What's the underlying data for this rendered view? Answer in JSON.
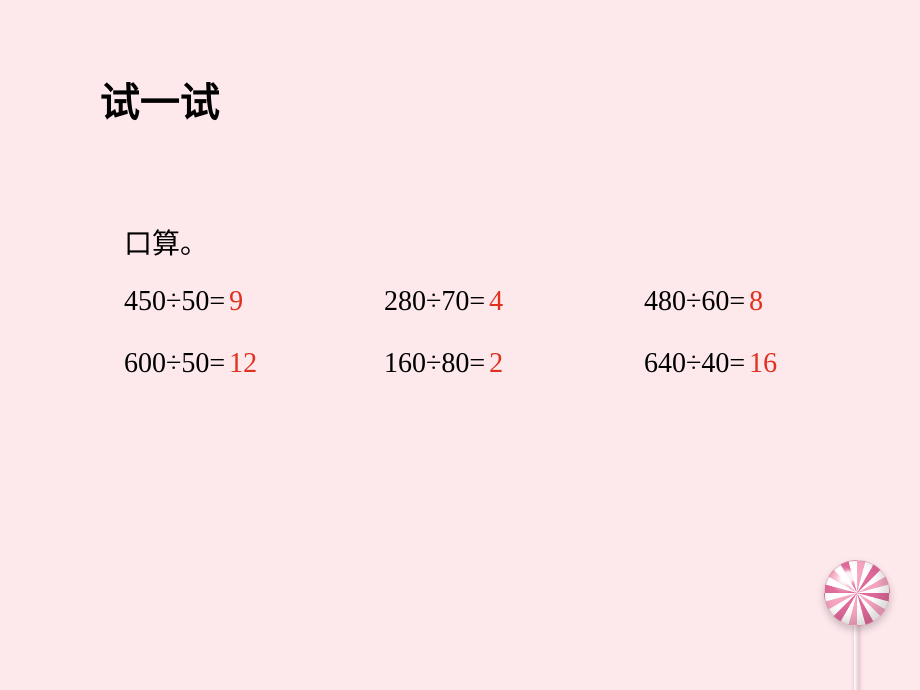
{
  "colors": {
    "background": "#fde8ec",
    "text": "#000000",
    "answer": "#e03020"
  },
  "typography": {
    "title_fontsize": 40,
    "body_fontsize": 28,
    "title_font": "KaiTi",
    "body_font": "SimSun"
  },
  "title": "试一试",
  "subtitle": "口算。",
  "problems": {
    "rows": [
      [
        {
          "expr": "450÷50=",
          "ans": "9"
        },
        {
          "expr": "280÷70=",
          "ans": "4"
        },
        {
          "expr": "480÷60=",
          "ans": "8"
        }
      ],
      [
        {
          "expr": "600÷50=",
          "ans": "12"
        },
        {
          "expr": "160÷80=",
          "ans": "2"
        },
        {
          "expr": "640÷40=",
          "ans": "16"
        }
      ]
    ]
  },
  "decoration": {
    "type": "lollipop",
    "candy_colors": [
      "#f7a6c1",
      "#ffffff",
      "#e06a9a"
    ],
    "stick_color": "#f0d8e0"
  }
}
